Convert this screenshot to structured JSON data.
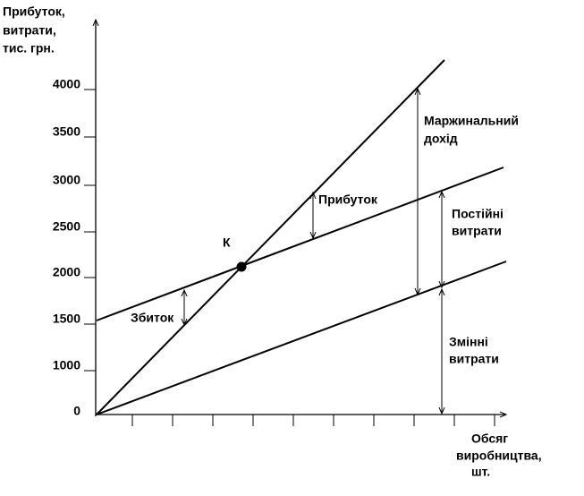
{
  "y_axis_title": [
    "Прибуток,",
    "витрати,",
    "тис. грн."
  ],
  "x_axis_title": [
    "Обсяг",
    "виробництва,",
    "шт."
  ],
  "y_tick_labels": [
    "4000",
    "3500",
    "3000",
    "2500",
    "2000",
    "1500",
    "1000",
    "0"
  ],
  "point_label": "К",
  "annotations": {
    "marginal_income": [
      "Маржинальний",
      "дохід"
    ],
    "profit": "Прибуток",
    "fixed_costs": [
      "Постійні",
      "витрати"
    ],
    "loss": "Збиток",
    "variable_costs": [
      "Змінні",
      "витрати"
    ]
  }
}
